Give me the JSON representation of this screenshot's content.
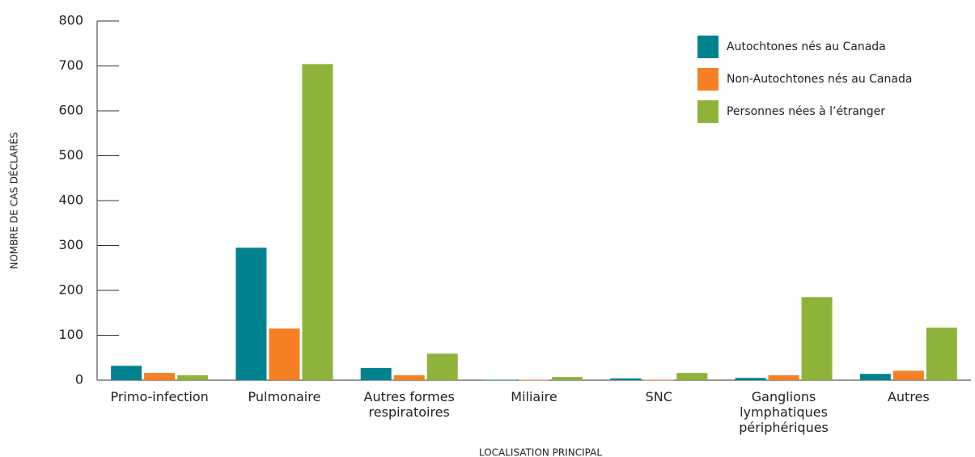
{
  "chart_data": {
    "type": "bar",
    "y_label": "NOMBRE DE CAS DÉCLARÉS",
    "x_label": "LOCALISATION PRINCIPAL",
    "categories": [
      "Primo-infection",
      "Pulmonaire",
      "Autres formes respiratoires",
      "Miliaire",
      "SNC",
      "Ganglions lymphatiques périphériques",
      "Autres"
    ],
    "series": [
      {
        "name": "Autochtones nés au Canada",
        "color": "#00838f",
        "values": [
          32,
          295,
          27,
          1,
          4,
          5,
          14
        ]
      },
      {
        "name": "Non-Autochtones nés au Canada",
        "color": "#f58025",
        "values": [
          16,
          115,
          11,
          1,
          1,
          11,
          21
        ]
      },
      {
        "name": "Personnes nées à l’étranger",
        "color": "#8db33a",
        "values": [
          11,
          704,
          59,
          7,
          16,
          185,
          117
        ]
      }
    ],
    "ylim": [
      0,
      800
    ],
    "yticks": [
      0,
      100,
      200,
      300,
      400,
      500,
      600,
      700,
      800
    ],
    "grid": false,
    "legend": "top-right"
  }
}
